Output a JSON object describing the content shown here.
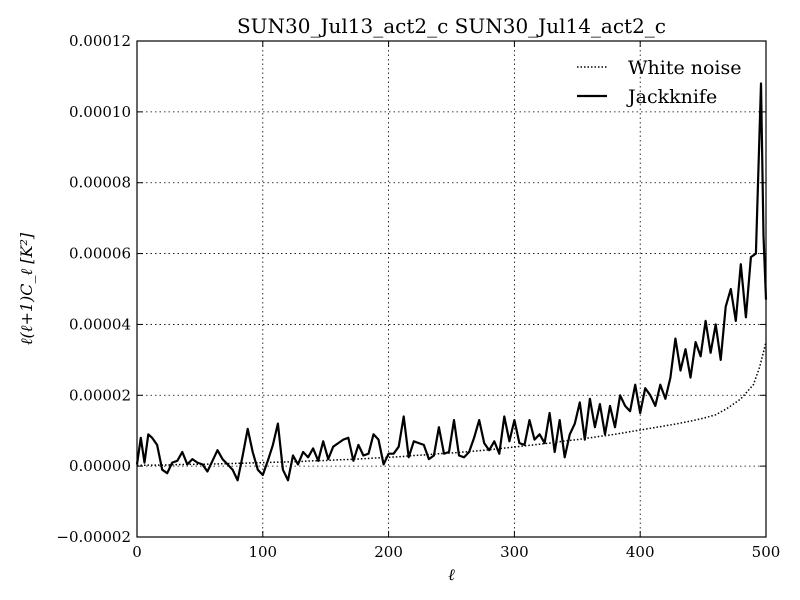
{
  "chart_data": {
    "type": "line",
    "title": "SUN30_Jul13_act2_c SUN30_Jul14_act2_c",
    "xlabel": "ℓ",
    "ylabel": "ℓ(ℓ+1)C_ℓ [K²]",
    "xlim": [
      0,
      500
    ],
    "ylim": [
      -2e-05,
      0.00012
    ],
    "x_ticks": [
      0,
      100,
      200,
      300,
      400,
      500
    ],
    "x_tick_labels": [
      "0",
      "100",
      "200",
      "300",
      "400",
      "500"
    ],
    "y_ticks": [
      -2e-05,
      0,
      2e-05,
      4e-05,
      6e-05,
      8e-05,
      0.0001,
      0.00012
    ],
    "y_tick_labels": [
      "−0.00002",
      "0.00000",
      "0.00002",
      "0.00004",
      "0.00006",
      "0.00008",
      "0.00010",
      "0.00012"
    ],
    "grid": true,
    "legend_position": "top-right",
    "series": [
      {
        "name": "White noise",
        "style": "dotted",
        "color": "#000000",
        "x": [
          0,
          10,
          20,
          30,
          40,
          50,
          60,
          70,
          80,
          90,
          100,
          110,
          120,
          130,
          140,
          150,
          160,
          170,
          180,
          190,
          200,
          210,
          220,
          230,
          240,
          250,
          260,
          270,
          280,
          290,
          300,
          310,
          320,
          330,
          340,
          350,
          360,
          370,
          380,
          390,
          400,
          410,
          420,
          430,
          440,
          450,
          460,
          470,
          480,
          490,
          495,
          500
        ],
        "y": [
          2e-07,
          3e-07,
          3e-07,
          4e-07,
          5e-07,
          5e-07,
          6e-07,
          7e-07,
          8e-07,
          9e-07,
          1e-06,
          1.1e-06,
          1.2e-06,
          1.3e-06,
          1.5e-06,
          1.6e-06,
          1.8e-06,
          1.9e-06,
          2.1e-06,
          2.3e-06,
          2.5e-06,
          2.7e-06,
          3e-06,
          3.2e-06,
          3.5e-06,
          3.7e-06,
          4e-06,
          4.3e-06,
          4.6e-06,
          5e-06,
          5.4e-06,
          5.8e-06,
          6.2e-06,
          6.6e-06,
          7.1e-06,
          7.5e-06,
          8e-06,
          8.5e-06,
          9e-06,
          9.6e-06,
          1.02e-05,
          1.08e-05,
          1.14e-05,
          1.2e-05,
          1.27e-05,
          1.35e-05,
          1.45e-05,
          1.65e-05,
          1.9e-05,
          2.3e-05,
          2.8e-05,
          3.5e-05
        ]
      },
      {
        "name": "Jackknife",
        "style": "solid",
        "color": "#000000",
        "x": [
          0,
          3,
          6,
          9,
          12,
          16,
          20,
          24,
          28,
          32,
          36,
          40,
          44,
          48,
          52,
          56,
          60,
          64,
          68,
          72,
          76,
          80,
          84,
          88,
          92,
          96,
          100,
          104,
          108,
          112,
          116,
          120,
          124,
          128,
          132,
          136,
          140,
          144,
          148,
          152,
          156,
          160,
          164,
          168,
          172,
          176,
          180,
          184,
          188,
          192,
          196,
          200,
          204,
          208,
          212,
          216,
          220,
          224,
          228,
          232,
          236,
          240,
          244,
          248,
          252,
          256,
          260,
          264,
          268,
          272,
          276,
          280,
          284,
          288,
          292,
          296,
          300,
          304,
          308,
          312,
          316,
          320,
          324,
          328,
          332,
          336,
          340,
          344,
          348,
          352,
          356,
          360,
          364,
          368,
          372,
          376,
          380,
          384,
          388,
          392,
          396,
          400,
          404,
          408,
          412,
          416,
          420,
          424,
          428,
          432,
          436,
          440,
          444,
          448,
          452,
          456,
          460,
          464,
          468,
          472,
          476,
          480,
          484,
          488,
          492,
          496,
          498,
          500
        ],
        "y": [
          5e-07,
          8e-06,
          1e-06,
          9e-06,
          8e-06,
          6e-06,
          -1e-06,
          -2e-06,
          1e-06,
          1.5e-06,
          4e-06,
          5e-07,
          2e-06,
          1e-06,
          5e-07,
          -1.5e-06,
          1.5e-06,
          4.5e-06,
          2e-06,
          5e-07,
          -1e-06,
          -4e-06,
          3e-06,
          1.05e-05,
          4e-06,
          -1e-06,
          -2.5e-06,
          1.5e-06,
          6e-06,
          1.2e-05,
          -1e-06,
          -4e-06,
          3e-06,
          5e-07,
          4e-06,
          2.5e-06,
          5e-06,
          1.5e-06,
          7e-06,
          2e-06,
          5.5e-06,
          6.5e-06,
          7.5e-06,
          8e-06,
          1.5e-06,
          6e-06,
          3e-06,
          3.5e-06,
          9e-06,
          7.5e-06,
          5e-07,
          3.5e-06,
          3.5e-06,
          5.5e-06,
          1.4e-05,
          2.5e-06,
          7e-06,
          6.5e-06,
          6e-06,
          2e-06,
          3e-06,
          1.1e-05,
          3.5e-06,
          4e-06,
          1.3e-05,
          3e-06,
          2.5e-06,
          4e-06,
          8e-06,
          1.3e-05,
          6.5e-06,
          4.5e-06,
          7e-06,
          3.5e-06,
          1.4e-05,
          7e-06,
          1.3e-05,
          6.5e-06,
          6e-06,
          1.3e-05,
          7.5e-06,
          9e-06,
          6.5e-06,
          1.5e-05,
          4e-06,
          1.3e-05,
          2.5e-06,
          9e-06,
          1.2e-05,
          1.8e-05,
          7.5e-06,
          1.9e-05,
          1.1e-05,
          1.75e-05,
          9e-06,
          1.7e-05,
          1.1e-05,
          2e-05,
          1.7e-05,
          1.55e-05,
          2.3e-05,
          1.5e-05,
          2.2e-05,
          2e-05,
          1.7e-05,
          2.3e-05,
          1.9e-05,
          2.5e-05,
          3.6e-05,
          2.7e-05,
          3.3e-05,
          2.5e-05,
          3.5e-05,
          3.1e-05,
          4.1e-05,
          3.2e-05,
          4e-05,
          3e-05,
          4.5e-05,
          5e-05,
          4.1e-05,
          5.7e-05,
          4.2e-05,
          5.9e-05,
          6e-05,
          0.000108,
          6.5e-05,
          4.7e-05
        ]
      }
    ]
  }
}
